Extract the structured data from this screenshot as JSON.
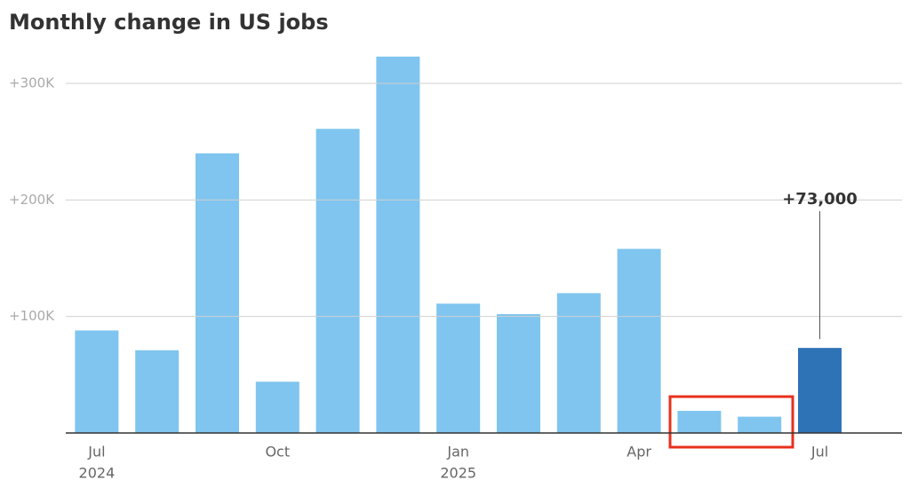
{
  "chart_data": {
    "type": "bar",
    "title": "Monthly change in US jobs",
    "categories": [
      "Jul",
      null,
      null,
      "Oct",
      null,
      null,
      "Jan",
      null,
      null,
      "Apr",
      null,
      null,
      "Jul"
    ],
    "years": [
      "2024",
      null,
      null,
      null,
      null,
      null,
      "2025",
      null,
      null,
      null,
      null,
      null,
      null
    ],
    "values": [
      88000,
      71000,
      240000,
      44000,
      261000,
      323000,
      111000,
      102000,
      120000,
      158000,
      19000,
      14000,
      73000
    ],
    "value_labels": [
      null,
      null,
      null,
      null,
      null,
      null,
      null,
      null,
      null,
      null,
      null,
      null,
      "+73,000"
    ],
    "colors": [
      "#7fc5ef",
      "#7fc5ef",
      "#7fc5ef",
      "#7fc5ef",
      "#7fc5ef",
      "#7fc5ef",
      "#7fc5ef",
      "#7fc5ef",
      "#7fc5ef",
      "#7fc5ef",
      "#7fc5ef",
      "#7fc5ef",
      "#2f73b7"
    ],
    "ylim": [
      0,
      320000
    ],
    "yticks": [
      {
        "value": 100000,
        "label": "+100K"
      },
      {
        "value": 200000,
        "label": "+200K"
      },
      {
        "value": 300000,
        "label": "+300K"
      }
    ],
    "grid": true
  }
}
